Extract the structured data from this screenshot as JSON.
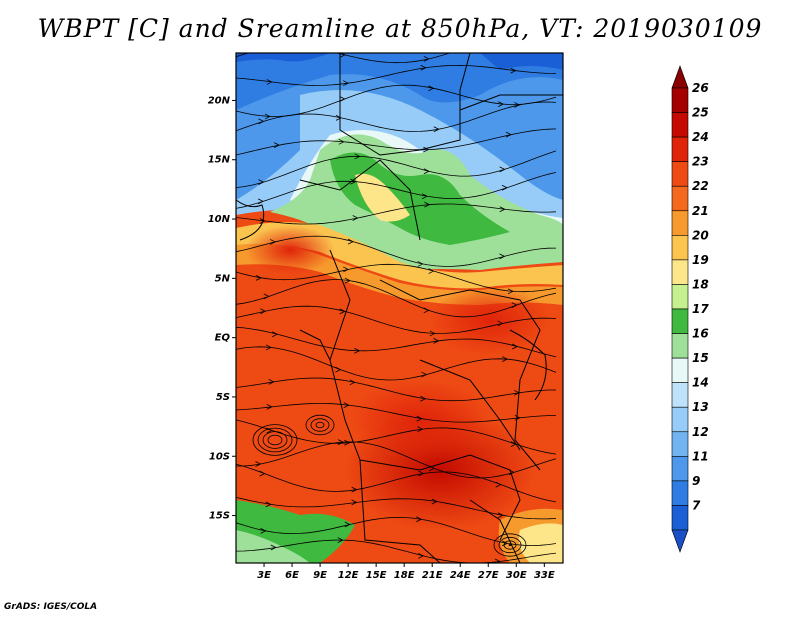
{
  "title": "WBPT [C] and Sreamline at 850hPa, VT: 2019030109",
  "footer": "GrADS: IGES/COLA",
  "map": {
    "variable": "Wet-bulb potential temperature (shaded) with 850hPa streamlines",
    "lat_range": [
      -19,
      24
    ],
    "lon_range": [
      0,
      35
    ],
    "lat_ticks": [
      {
        "value": 20,
        "label": "20N"
      },
      {
        "value": 15,
        "label": "15N"
      },
      {
        "value": 10,
        "label": "10N"
      },
      {
        "value": 5,
        "label": "5N"
      },
      {
        "value": 0,
        "label": "EQ"
      },
      {
        "value": -5,
        "label": "5S"
      },
      {
        "value": -10,
        "label": "10S"
      },
      {
        "value": -15,
        "label": "15S"
      }
    ],
    "lon_ticks": [
      {
        "value": 3,
        "label": "3E"
      },
      {
        "value": 6,
        "label": "6E"
      },
      {
        "value": 9,
        "label": "9E"
      },
      {
        "value": 12,
        "label": "12E"
      },
      {
        "value": 15,
        "label": "15E"
      },
      {
        "value": 18,
        "label": "18E"
      },
      {
        "value": 21,
        "label": "21E"
      },
      {
        "value": 24,
        "label": "24E"
      },
      {
        "value": 27,
        "label": "27E"
      },
      {
        "value": 30,
        "label": "30E"
      },
      {
        "value": 33,
        "label": "33E"
      }
    ]
  },
  "colorbar": {
    "levels": [
      {
        "label": "26",
        "color": "#a50000"
      },
      {
        "label": "25",
        "color": "#c40a00"
      },
      {
        "label": "24",
        "color": "#e0240a"
      },
      {
        "label": "23",
        "color": "#ee4a14"
      },
      {
        "label": "22",
        "color": "#f5691e"
      },
      {
        "label": "21",
        "color": "#f79a2e"
      },
      {
        "label": "20",
        "color": "#fbc44f"
      },
      {
        "label": "19",
        "color": "#fde58a"
      },
      {
        "label": "18",
        "color": "#c6ef8f"
      },
      {
        "label": "17",
        "color": "#3fb93f"
      },
      {
        "label": "16",
        "color": "#9ee09a"
      },
      {
        "label": "15",
        "color": "#e8f8f6"
      },
      {
        "label": "14",
        "color": "#bfe2fb"
      },
      {
        "label": "13",
        "color": "#96ccf7"
      },
      {
        "label": "12",
        "color": "#72b4f1"
      },
      {
        "label": "11",
        "color": "#4d98ea"
      },
      {
        "label": "9",
        "color": "#2f7de2"
      },
      {
        "label": "7",
        "color": "#1a5fd6"
      }
    ],
    "top_arrow_color": "#8a0000",
    "bottom_arrow_color": "#1a4fc8"
  }
}
